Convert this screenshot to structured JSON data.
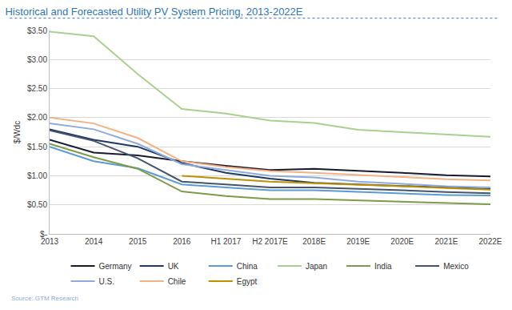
{
  "chart_data": {
    "type": "line",
    "title": "Historical and Forecasted Utility PV System Pricing, 2013-2022E",
    "y_label": "$/Wdc",
    "annotations": [
      "Source: GTM Research"
    ],
    "categories": [
      "2013",
      "2014",
      "2015",
      "2016",
      "H1 2017",
      "H2 2017E",
      "2018E",
      "2019E",
      "2020E",
      "2021E",
      "2022E"
    ],
    "series": [
      {
        "name": "Germany",
        "color": "#1a1a2e",
        "values": [
          1.62,
          1.4,
          1.35,
          1.25,
          1.17,
          1.1,
          1.12,
          1.09,
          1.05,
          1.01,
          0.99
        ]
      },
      {
        "name": "UK",
        "color": "#1f3864",
        "values": [
          1.8,
          1.62,
          1.5,
          1.22,
          1.05,
          0.95,
          0.88,
          0.85,
          0.82,
          0.79,
          0.77
        ]
      },
      {
        "name": "China",
        "color": "#5b9bd5",
        "values": [
          1.5,
          1.25,
          1.13,
          0.85,
          0.8,
          0.75,
          0.75,
          0.72,
          0.7,
          0.67,
          0.66
        ]
      },
      {
        "name": "Japan",
        "color": "#a9d18e",
        "values": [
          3.48,
          3.4,
          2.75,
          2.15,
          2.07,
          1.95,
          1.91,
          1.79,
          1.75,
          1.71,
          1.67
        ]
      },
      {
        "name": "India",
        "color": "#7f9a48",
        "values": [
          1.55,
          1.32,
          1.12,
          0.73,
          0.65,
          0.6,
          0.6,
          0.58,
          0.55,
          0.53,
          0.51
        ]
      },
      {
        "name": "Mexico",
        "color": "#44546a",
        "values": [
          1.78,
          1.6,
          1.3,
          0.9,
          0.85,
          0.8,
          0.8,
          0.78,
          0.75,
          0.72,
          0.7
        ]
      },
      {
        "name": "U.S.",
        "color": "#8faadc",
        "values": [
          1.9,
          1.8,
          1.55,
          1.2,
          1.1,
          1.0,
          0.97,
          0.9,
          0.86,
          0.82,
          0.8
        ]
      },
      {
        "name": "Chile",
        "color": "#f4b183",
        "values": [
          2.0,
          1.9,
          1.65,
          1.25,
          1.15,
          1.08,
          1.05,
          1.02,
          0.98,
          0.94,
          0.92
        ]
      },
      {
        "name": "Egypt",
        "color": "#bf9000",
        "values": [
          null,
          null,
          null,
          1.0,
          0.95,
          0.9,
          0.87,
          0.85,
          0.82,
          0.79,
          0.76
        ]
      }
    ],
    "ylim": [
      0,
      3.5
    ],
    "yticks": [
      {
        "value": 0,
        "label": "$-"
      },
      {
        "value": 0.5,
        "label": "$0.50"
      },
      {
        "value": 1,
        "label": "$1.00"
      },
      {
        "value": 1.5,
        "label": "$1.50"
      },
      {
        "value": 2,
        "label": "$2.00"
      },
      {
        "value": 2.5,
        "label": "$2.50"
      },
      {
        "value": 3,
        "label": "$3.00"
      },
      {
        "value": 3.5,
        "label": "$3.50"
      }
    ],
    "grid": true,
    "legend": "bottom",
    "line_style": "solid"
  }
}
